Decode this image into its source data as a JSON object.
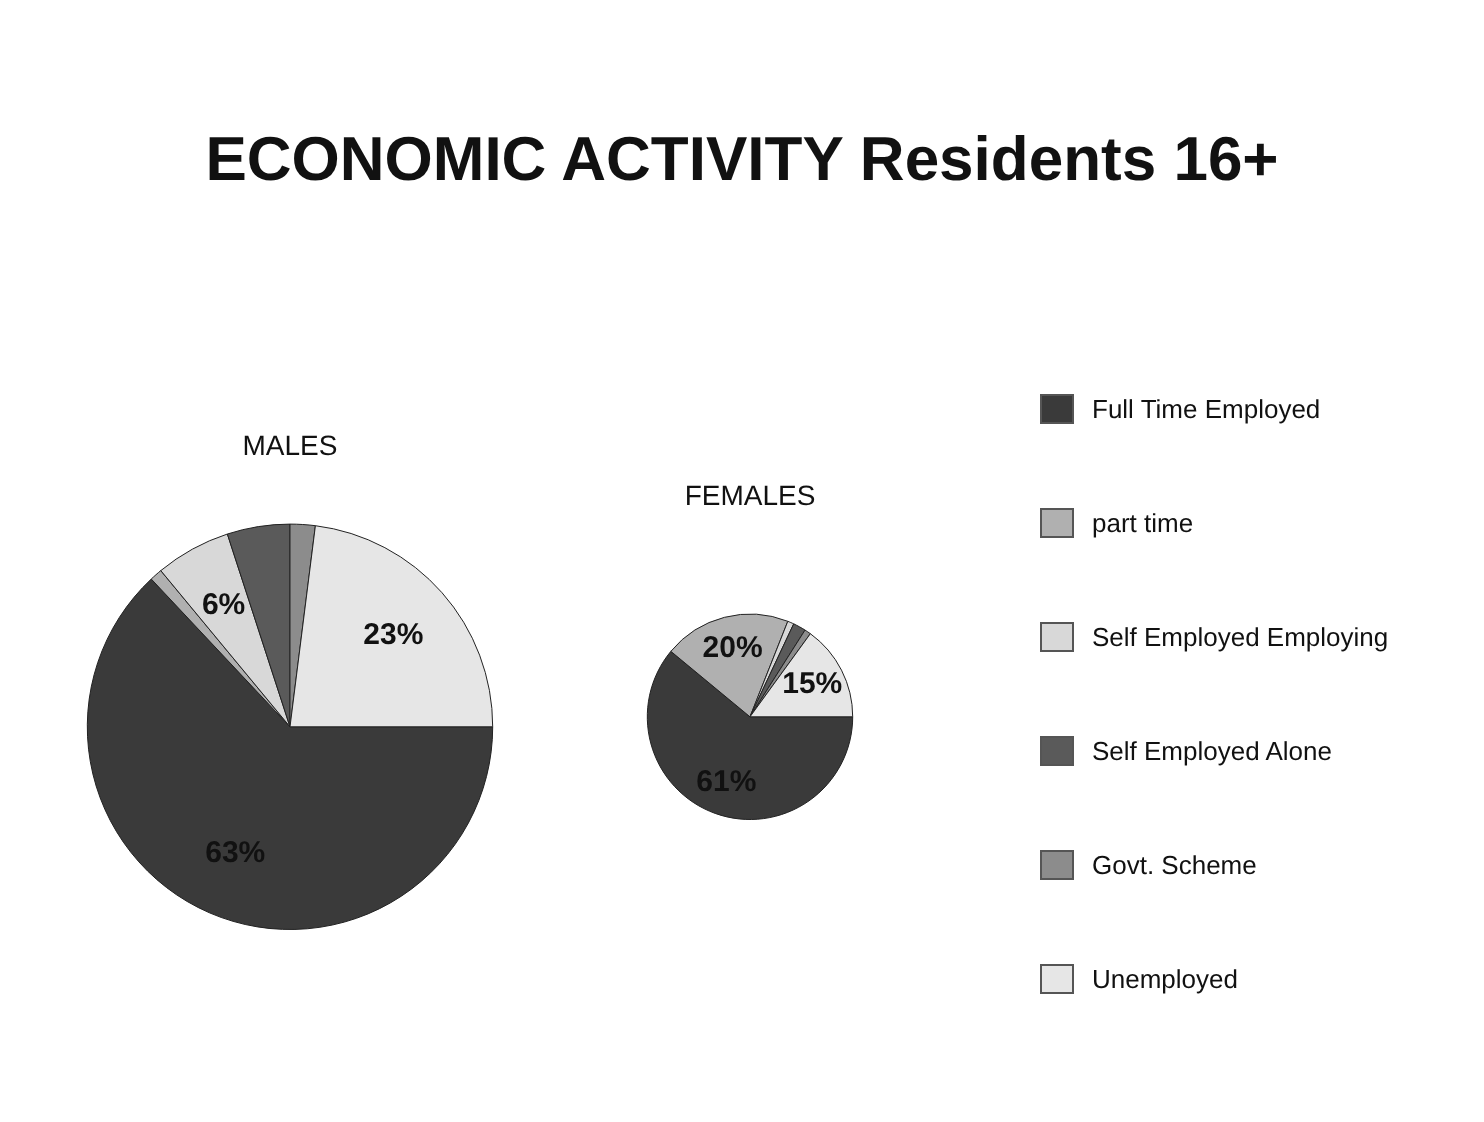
{
  "chart_data": {
    "type": "pie",
    "title": "ECONOMIC ACTIVITY Residents 16+",
    "categories": [
      "Full Time Employed",
      "part time",
      "Self Employed Employing",
      "Self Employed Alone",
      "Govt. Scheme",
      "Unemployed"
    ],
    "colors": [
      "#3a3a3a",
      "#b0b0b0",
      "#d8d8d8",
      "#5a5a5a",
      "#8c8c8c",
      "#e6e6e6"
    ],
    "legend": "right",
    "series": [
      {
        "name": "MALES",
        "values": [
          63,
          1,
          6,
          5,
          2,
          23
        ],
        "value_labels": [
          "63%",
          null,
          "6%",
          null,
          null,
          "23%"
        ]
      },
      {
        "name": "FEMALES",
        "values": [
          61,
          20,
          1,
          2,
          1,
          15
        ],
        "value_labels": [
          "61%",
          "20%",
          null,
          null,
          null,
          "15%"
        ]
      }
    ]
  }
}
